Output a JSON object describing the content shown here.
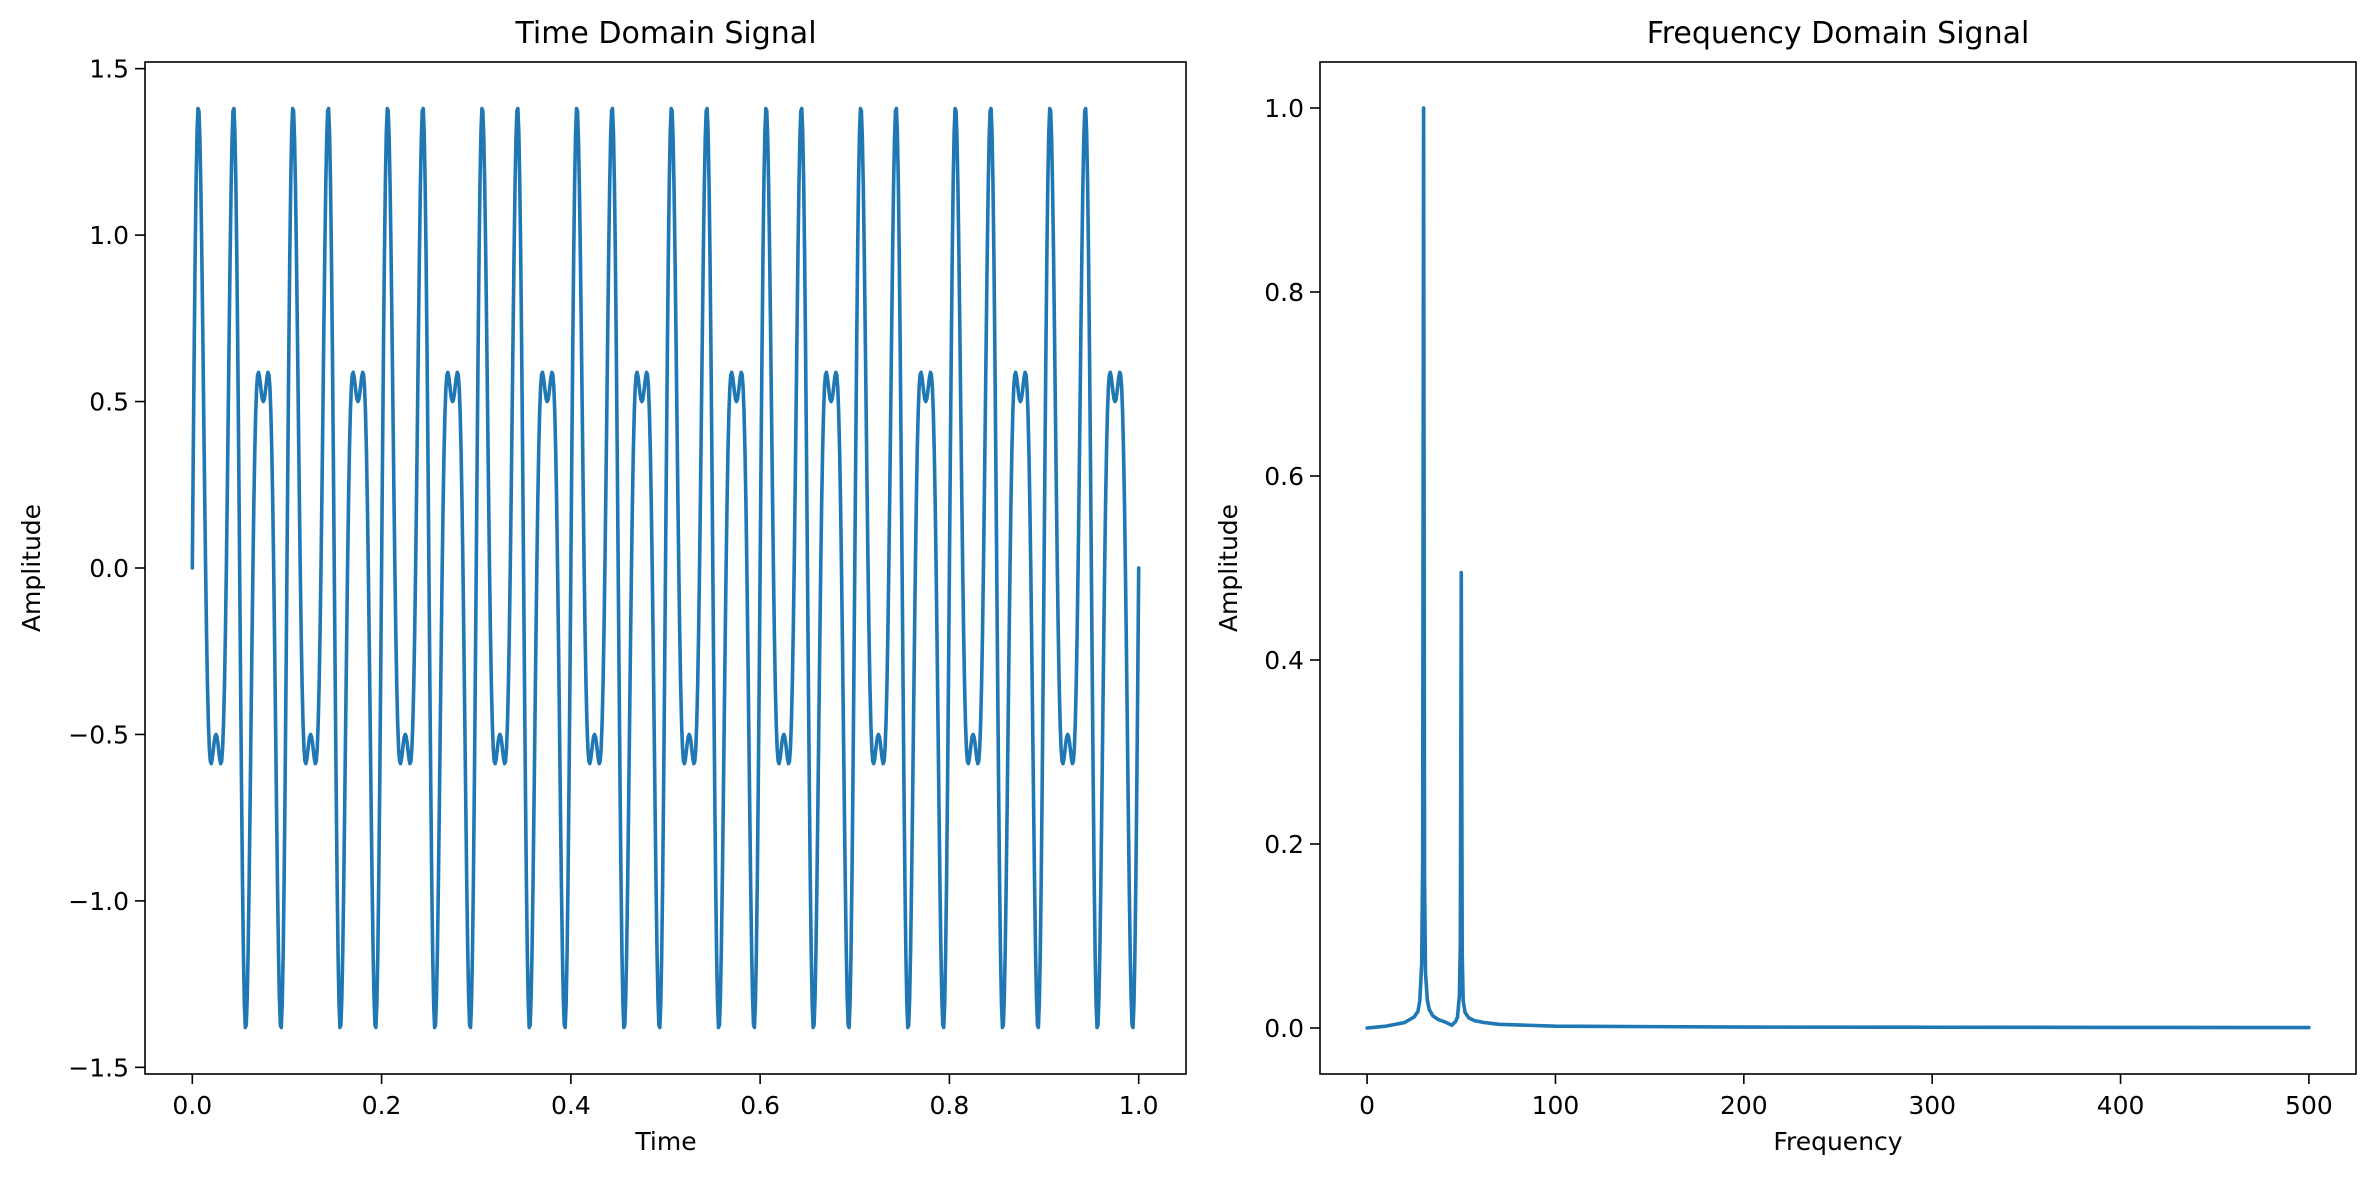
{
  "colors": {
    "series": "#1f77b4",
    "axes": "#000000",
    "background": "#ffffff"
  },
  "chart_data": [
    {
      "type": "line",
      "title": "Time Domain Signal",
      "xlabel": "Time",
      "ylabel": "Amplitude",
      "xlim": [
        -0.05,
        1.05
      ],
      "ylim": [
        -1.52,
        1.52
      ],
      "xticks": [
        0.0,
        0.2,
        0.4,
        0.6,
        0.8,
        1.0
      ],
      "xtick_labels": [
        "0.0",
        "0.2",
        "0.4",
        "0.6",
        "0.8",
        "1.0"
      ],
      "yticks": [
        -1.5,
        -1.0,
        -0.5,
        0.0,
        0.5,
        1.0,
        1.5
      ],
      "ytick_labels": [
        "−1.5",
        "−1.0",
        "−0.5",
        "0.0",
        "0.5",
        "1.0",
        "1.5"
      ],
      "grid": false,
      "series": [
        {
          "sample_rate": 1000,
          "x_range": [
            0,
            1
          ],
          "components": [
            {
              "frequency": 30,
              "amplitude": 1.0
            },
            {
              "frequency": 50,
              "amplitude": 0.5
            }
          ]
        }
      ]
    },
    {
      "type": "line",
      "title": "Frequency Domain Signal",
      "xlabel": "Frequency",
      "ylabel": "Amplitude",
      "xlim": [
        -25,
        525
      ],
      "ylim": [
        -0.05,
        1.05
      ],
      "xticks": [
        0,
        100,
        200,
        300,
        400,
        500
      ],
      "xtick_labels": [
        "0",
        "100",
        "200",
        "300",
        "400",
        "500"
      ],
      "yticks": [
        0.0,
        0.2,
        0.4,
        0.6,
        0.8,
        1.0
      ],
      "ytick_labels": [
        "0.0",
        "0.2",
        "0.4",
        "0.6",
        "0.8",
        "1.0"
      ],
      "grid": false,
      "series": [
        {
          "x": [
            0,
            10,
            20,
            25,
            27,
            28,
            29,
            29.5,
            30,
            30.5,
            31,
            32,
            33,
            35,
            38,
            42,
            45,
            47,
            48,
            49,
            49.5,
            50,
            50.5,
            51,
            52,
            54,
            57,
            62,
            70,
            85,
            100,
            150,
            200,
            300,
            400,
            500
          ],
          "y": [
            0.0,
            0.002,
            0.006,
            0.012,
            0.018,
            0.03,
            0.07,
            0.18,
            1.0,
            0.16,
            0.06,
            0.03,
            0.02,
            0.013,
            0.009,
            0.006,
            0.003,
            0.007,
            0.012,
            0.035,
            0.09,
            0.495,
            0.08,
            0.03,
            0.017,
            0.011,
            0.008,
            0.006,
            0.004,
            0.003,
            0.002,
            0.0015,
            0.001,
            0.0008,
            0.0006,
            0.0005
          ]
        }
      ]
    }
  ]
}
